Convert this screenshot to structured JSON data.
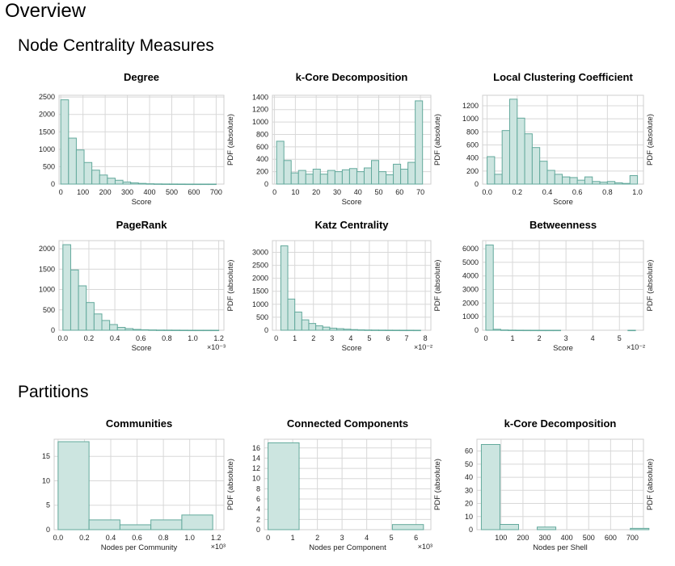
{
  "page": {
    "title": "Overview",
    "sections": [
      "Node Centrality Measures",
      "Partitions"
    ]
  },
  "colors": {
    "bar_fill": "#cce5e0",
    "bar_edge": "#63a99c",
    "grid": "#d8d8d8"
  },
  "chart_data": [
    {
      "id": "degree",
      "type": "bar",
      "title": "Degree",
      "xlabel": "Score",
      "ylabel": "PDF (absolute)",
      "multiplier": "",
      "xlim": [
        -8,
        735
      ],
      "ylim": [
        0,
        2550
      ],
      "xticks": [
        0,
        100,
        200,
        300,
        400,
        500,
        600,
        700
      ],
      "xticklabels": [
        "0",
        "100",
        "200",
        "300",
        "400",
        "500",
        "600",
        "700"
      ],
      "yticks": [
        0,
        500,
        1000,
        1500,
        2000,
        2500
      ],
      "bin_edges": [
        0,
        35,
        70,
        105,
        140,
        175,
        210,
        245,
        280,
        315,
        350,
        385,
        420,
        455,
        490,
        525,
        560,
        595,
        630,
        665,
        700
      ],
      "values": [
        2420,
        1320,
        980,
        620,
        400,
        260,
        170,
        110,
        60,
        35,
        20,
        10,
        6,
        4,
        3,
        2,
        1,
        1,
        1,
        1
      ]
    },
    {
      "id": "kcore",
      "type": "bar",
      "title": "k-Core Decomposition",
      "xlabel": "Score",
      "ylabel": "PDF (absolute)",
      "multiplier": "",
      "xlim": [
        -1,
        75
      ],
      "ylim": [
        0,
        1430
      ],
      "xticks": [
        0,
        10,
        20,
        30,
        40,
        50,
        60,
        70
      ],
      "xticklabels": [
        "0",
        "10",
        "20",
        "30",
        "40",
        "50",
        "60",
        "70"
      ],
      "yticks": [
        0,
        200,
        400,
        600,
        800,
        1000,
        1200,
        1400
      ],
      "bin_edges": [
        1,
        4.5,
        8,
        11.5,
        15,
        18.5,
        22,
        25.5,
        29,
        32.5,
        36,
        39.5,
        43,
        46.5,
        50,
        53.5,
        57,
        60.5,
        64,
        67.5,
        71
      ],
      "values": [
        690,
        380,
        180,
        220,
        160,
        240,
        160,
        220,
        200,
        230,
        250,
        200,
        260,
        380,
        200,
        150,
        320,
        240,
        350,
        1340
      ]
    },
    {
      "id": "lcc",
      "type": "bar",
      "title": "Local Clustering Coefficient",
      "xlabel": "Score",
      "ylabel": "PDF (absolute)",
      "multiplier": "",
      "xlim": [
        -0.03,
        1.04
      ],
      "ylim": [
        0,
        1360
      ],
      "xticks": [
        0.0,
        0.2,
        0.4,
        0.6,
        0.8,
        1.0
      ],
      "xticklabels": [
        "0.0",
        "0.2",
        "0.4",
        "0.6",
        "0.8",
        "1.0"
      ],
      "yticks": [
        0,
        200,
        400,
        600,
        800,
        1000,
        1200
      ],
      "bin_edges": [
        0,
        0.05,
        0.1,
        0.15,
        0.2,
        0.25,
        0.3,
        0.35,
        0.4,
        0.45,
        0.5,
        0.55,
        0.6,
        0.65,
        0.7,
        0.75,
        0.8,
        0.85,
        0.9,
        0.95,
        1.0
      ],
      "values": [
        420,
        150,
        820,
        1300,
        1010,
        770,
        560,
        350,
        210,
        150,
        110,
        100,
        60,
        110,
        40,
        30,
        40,
        20,
        10,
        130
      ]
    },
    {
      "id": "pagerank",
      "type": "bar",
      "title": "PageRank",
      "xlabel": "Score",
      "ylabel": "PDF (absolute)",
      "multiplier": "×10⁻³",
      "xlim": [
        -0.03,
        1.24
      ],
      "ylim": [
        0,
        2200
      ],
      "xticks": [
        0.0,
        0.2,
        0.4,
        0.6,
        0.8,
        1.0,
        1.2
      ],
      "xticklabels": [
        "0.0",
        "0.2",
        "0.4",
        "0.6",
        "0.8",
        "1.0",
        "1.2"
      ],
      "yticks": [
        0,
        500,
        1000,
        1500,
        2000
      ],
      "bin_edges": [
        0.0,
        0.06,
        0.12,
        0.18,
        0.24,
        0.3,
        0.36,
        0.42,
        0.48,
        0.54,
        0.6,
        0.66,
        0.72,
        0.78,
        0.84,
        0.9,
        0.96,
        1.02,
        1.08,
        1.14,
        1.2
      ],
      "values": [
        2100,
        1480,
        1090,
        680,
        400,
        240,
        140,
        70,
        40,
        20,
        12,
        8,
        5,
        4,
        3,
        2,
        1,
        1,
        1,
        1
      ]
    },
    {
      "id": "katz",
      "type": "bar",
      "title": "Katz Centrality",
      "xlabel": "Score",
      "ylabel": "PDF (absolute)",
      "multiplier": "×10⁻²",
      "xlim": [
        -0.2,
        8.3
      ],
      "ylim": [
        0,
        3450
      ],
      "xticks": [
        0,
        1,
        2,
        3,
        4,
        5,
        6,
        7,
        8
      ],
      "xticklabels": [
        "0",
        "1",
        "2",
        "3",
        "4",
        "5",
        "6",
        "7",
        "8"
      ],
      "yticks": [
        0,
        500,
        1000,
        1500,
        2000,
        2500,
        3000
      ],
      "bin_edges": [
        0.25,
        0.625,
        1.0,
        1.375,
        1.75,
        2.125,
        2.5,
        2.875,
        3.25,
        3.625,
        4.0,
        4.375,
        4.75,
        5.125,
        5.5,
        5.875,
        6.25,
        6.625,
        7.0,
        7.375,
        7.75
      ],
      "values": [
        3250,
        1200,
        700,
        400,
        260,
        170,
        120,
        80,
        60,
        40,
        25,
        15,
        10,
        8,
        6,
        4,
        3,
        2,
        2,
        1
      ]
    },
    {
      "id": "betweenness",
      "type": "bar",
      "title": "Betweenness",
      "xlabel": "Score",
      "ylabel": "PDF (absolute)",
      "multiplier": "×10⁻²",
      "xlim": [
        -0.12,
        5.9
      ],
      "ylim": [
        0,
        6600
      ],
      "xticks": [
        0,
        1,
        2,
        3,
        4,
        5
      ],
      "xticklabels": [
        "0",
        "1",
        "2",
        "3",
        "4",
        "5"
      ],
      "yticks": [
        0,
        1000,
        2000,
        3000,
        4000,
        5000,
        6000
      ],
      "bin_edges": [
        0,
        0.28,
        0.56,
        0.84,
        1.12,
        1.4,
        1.68,
        1.96,
        2.24,
        2.52,
        2.8,
        3.08,
        3.36,
        3.64,
        3.92,
        4.2,
        4.48,
        4.76,
        5.04,
        5.32,
        5.6
      ],
      "values": [
        6280,
        70,
        20,
        10,
        5,
        3,
        2,
        1,
        1,
        1,
        0,
        0,
        0,
        0,
        0,
        0,
        0,
        0,
        0,
        1
      ]
    },
    {
      "id": "communities",
      "type": "bar",
      "title": "Communities",
      "xlabel": "Nodes per Community",
      "ylabel": "PDF (absolute)",
      "multiplier": "×10³",
      "xlim": [
        -0.03,
        1.26
      ],
      "ylim": [
        0,
        18.5
      ],
      "xticks": [
        0.0,
        0.2,
        0.4,
        0.6,
        0.8,
        1.0,
        1.2
      ],
      "xticklabels": [
        "0.0",
        "0.2",
        "0.4",
        "0.6",
        "0.8",
        "1.0",
        "1.2"
      ],
      "yticks": [
        0,
        5,
        10,
        15
      ],
      "bin_edges": [
        0.0,
        0.235,
        0.47,
        0.705,
        0.94,
        1.175
      ],
      "values": [
        18,
        2,
        1,
        2,
        3
      ]
    },
    {
      "id": "components",
      "type": "bar",
      "title": "Connected Components",
      "xlabel": "Nodes per Component",
      "ylabel": "PDF (absolute)",
      "multiplier": "×10³",
      "xlim": [
        -0.15,
        6.6
      ],
      "ylim": [
        0,
        17.7
      ],
      "xticks": [
        0,
        1,
        2,
        3,
        4,
        5,
        6
      ],
      "xticklabels": [
        "0",
        "1",
        "2",
        "3",
        "4",
        "5",
        "6"
      ],
      "yticks": [
        0,
        2,
        4,
        6,
        8,
        10,
        12,
        14,
        16
      ],
      "bin_edges": [
        0.0,
        1.26,
        2.52,
        3.78,
        5.04,
        6.3
      ],
      "values": [
        17,
        0,
        0,
        0,
        1
      ]
    },
    {
      "id": "kcore_shells",
      "type": "bar",
      "title": "k-Core Decomposition",
      "xlabel": "Nodes per Shell",
      "ylabel": "PDF (absolute)",
      "multiplier": "",
      "xlim": [
        -10,
        750
      ],
      "ylim": [
        0,
        69
      ],
      "xticks": [
        100,
        200,
        300,
        400,
        500,
        600,
        700
      ],
      "xticklabels": [
        "100",
        "200",
        "300",
        "400",
        "500",
        "600",
        "700"
      ],
      "yticks": [
        0,
        10,
        20,
        30,
        40,
        50,
        60
      ],
      "bin_edges": [
        10,
        95,
        180,
        265,
        350,
        435,
        520,
        605,
        690,
        775
      ],
      "values": [
        65,
        4,
        0,
        2,
        0,
        0,
        0,
        0,
        1
      ]
    }
  ]
}
